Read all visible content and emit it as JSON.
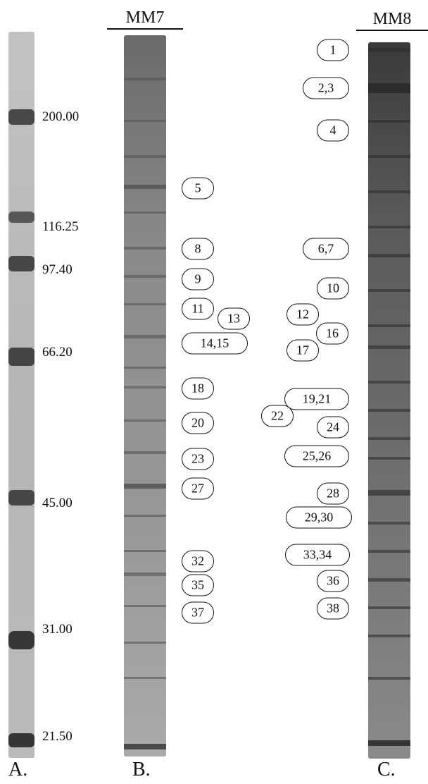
{
  "lanes": {
    "A": {
      "panel_label": "A.",
      "markers": [
        "200.00",
        "116.25",
        "97.40",
        "66.20",
        "45.00",
        "31.00",
        "21.50"
      ]
    },
    "B": {
      "header": "MM7",
      "panel_label": "B."
    },
    "C": {
      "header": "MM8",
      "panel_label": "C."
    }
  },
  "spots_lane_B": [
    "5",
    "8",
    "9",
    "11",
    "13",
    "14,15",
    "18",
    "20",
    "23",
    "27",
    "32",
    "35",
    "37"
  ],
  "spots_lane_C": [
    "1",
    "2,3",
    "4",
    "6,7",
    "10",
    "12",
    "16",
    "17",
    "19,21",
    "22",
    "24",
    "25,26",
    "28",
    "29,30",
    "33,34",
    "36",
    "38"
  ]
}
